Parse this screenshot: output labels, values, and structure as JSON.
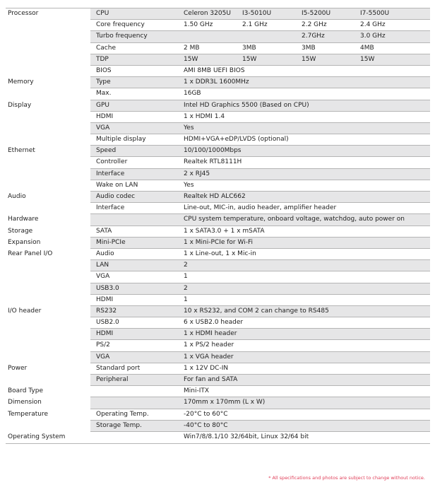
{
  "rows": [
    {
      "group": "Processor",
      "field": "CPU",
      "values": [
        "Celeron 3205U",
        "I3-5010U",
        "I5-5200U",
        "I7-5500U"
      ]
    },
    {
      "group": "",
      "field": "Core frequency",
      "values": [
        " 1.50 GHz",
        "2.1 GHz",
        "2.2 GHz",
        "2.4 GHz"
      ]
    },
    {
      "group": "",
      "field": "Turbo frequency",
      "values": [
        "",
        "",
        "2.7GHz",
        "3.0 GHz"
      ]
    },
    {
      "group": "",
      "field": "Cache",
      "values": [
        " 2 MB",
        "3MB",
        "3MB",
        "4MB"
      ]
    },
    {
      "group": "",
      "field": "TDP",
      "values": [
        "15W",
        "15W",
        "15W",
        "15W"
      ]
    },
    {
      "group": "",
      "field": "BIOS",
      "values": [
        "AMI 8MB UEFI BIOS"
      ]
    },
    {
      "group": "Memory",
      "field": "Type",
      "values": [
        "1 x DDR3L 1600MHz"
      ]
    },
    {
      "group": "",
      "field": "Max.",
      "values": [
        "16GB"
      ]
    },
    {
      "group": "Display",
      "field": "GPU",
      "values": [
        "Intel HD Graphics 5500 (Based on CPU)"
      ]
    },
    {
      "group": "",
      "field": "HDMI",
      "values": [
        "1 x HDMI 1.4"
      ]
    },
    {
      "group": "",
      "field": "VGA",
      "values": [
        "Yes"
      ]
    },
    {
      "group": "",
      "field": "Multiple display",
      "values": [
        "HDMI+VGA+eDP/LVDS (optional)"
      ]
    },
    {
      "group": "Ethernet",
      "field": "Speed",
      "values": [
        "10/100/1000Mbps"
      ]
    },
    {
      "group": "",
      "field": "Controller",
      "values": [
        "Realtek RTL8111H"
      ]
    },
    {
      "group": "",
      "field": "Interface",
      "values": [
        "2 x RJ45"
      ]
    },
    {
      "group": "",
      "field": "Wake on LAN",
      "values": [
        "Yes"
      ]
    },
    {
      "group": "Audio",
      "field": "Audio codec",
      "values": [
        "Realtek HD ALC662"
      ]
    },
    {
      "group": "",
      "field": "Interface",
      "values": [
        "Line-out, MIC-in, audio header, amplifier header"
      ]
    },
    {
      "group": "Hardware",
      "field": "",
      "values": [
        "CPU system temperature, onboard voltage, watchdog, auto power on"
      ]
    },
    {
      "group": "Storage",
      "field": "SATA",
      "values": [
        "1 x SATA3.0 + 1 x mSATA"
      ]
    },
    {
      "group": "Expansion",
      "field": "Mini-PCIe",
      "values": [
        "1 x Mini-PCIe for Wi-Fi"
      ]
    },
    {
      "group": "Rear Panel I/O",
      "field": "Audio",
      "values": [
        "1 x Line-out, 1 x Mic-in"
      ]
    },
    {
      "group": "",
      "field": "LAN",
      "values": [
        "2"
      ]
    },
    {
      "group": "",
      "field": "VGA",
      "values": [
        "1"
      ]
    },
    {
      "group": "",
      "field": "USB3.0",
      "values": [
        "2"
      ]
    },
    {
      "group": "",
      "field": "HDMI",
      "values": [
        "1"
      ]
    },
    {
      "group": "I/O header",
      "field": "RS232",
      "values": [
        "10 x RS232, and COM 2 can change to RS485"
      ]
    },
    {
      "group": "",
      "field": "USB2.0",
      "values": [
        "6 x USB2.0 header"
      ]
    },
    {
      "group": "",
      "field": "HDMI",
      "values": [
        "1 x HDMI header"
      ]
    },
    {
      "group": "",
      "field": "PS/2",
      "values": [
        "1 x PS/2 header"
      ]
    },
    {
      "group": "",
      "field": "VGA",
      "values": [
        "1 x VGA header"
      ]
    },
    {
      "group": "Power",
      "field": "Standard port",
      "values": [
        "1 x 12V DC-IN"
      ]
    },
    {
      "group": "",
      "field": "Peripheral",
      "values": [
        "For fan and SATA"
      ]
    },
    {
      "group": "Board Type",
      "field": "",
      "values": [
        "Mini-ITX"
      ]
    },
    {
      "group": "Dimension",
      "field": "",
      "values": [
        "170mm x 170mm (L x W)"
      ]
    },
    {
      "group": "Temperature",
      "field": "Operating Temp.",
      "values": [
        "-20°C to 60°C"
      ]
    },
    {
      "group": "",
      "field": "Storage Temp.",
      "values": [
        "-40°C to 80°C"
      ]
    },
    {
      "group": "Operating System",
      "field": "",
      "values": [
        "Win7/8/8.1/10 32/64bit, Linux 32/64 bit"
      ]
    }
  ],
  "footnote": "* All specifications and photos are subject to change without notice.",
  "colors": {
    "row_shade": "#e6e6e7",
    "rule": "#b5b5b5",
    "footnote": "#e0405a"
  }
}
